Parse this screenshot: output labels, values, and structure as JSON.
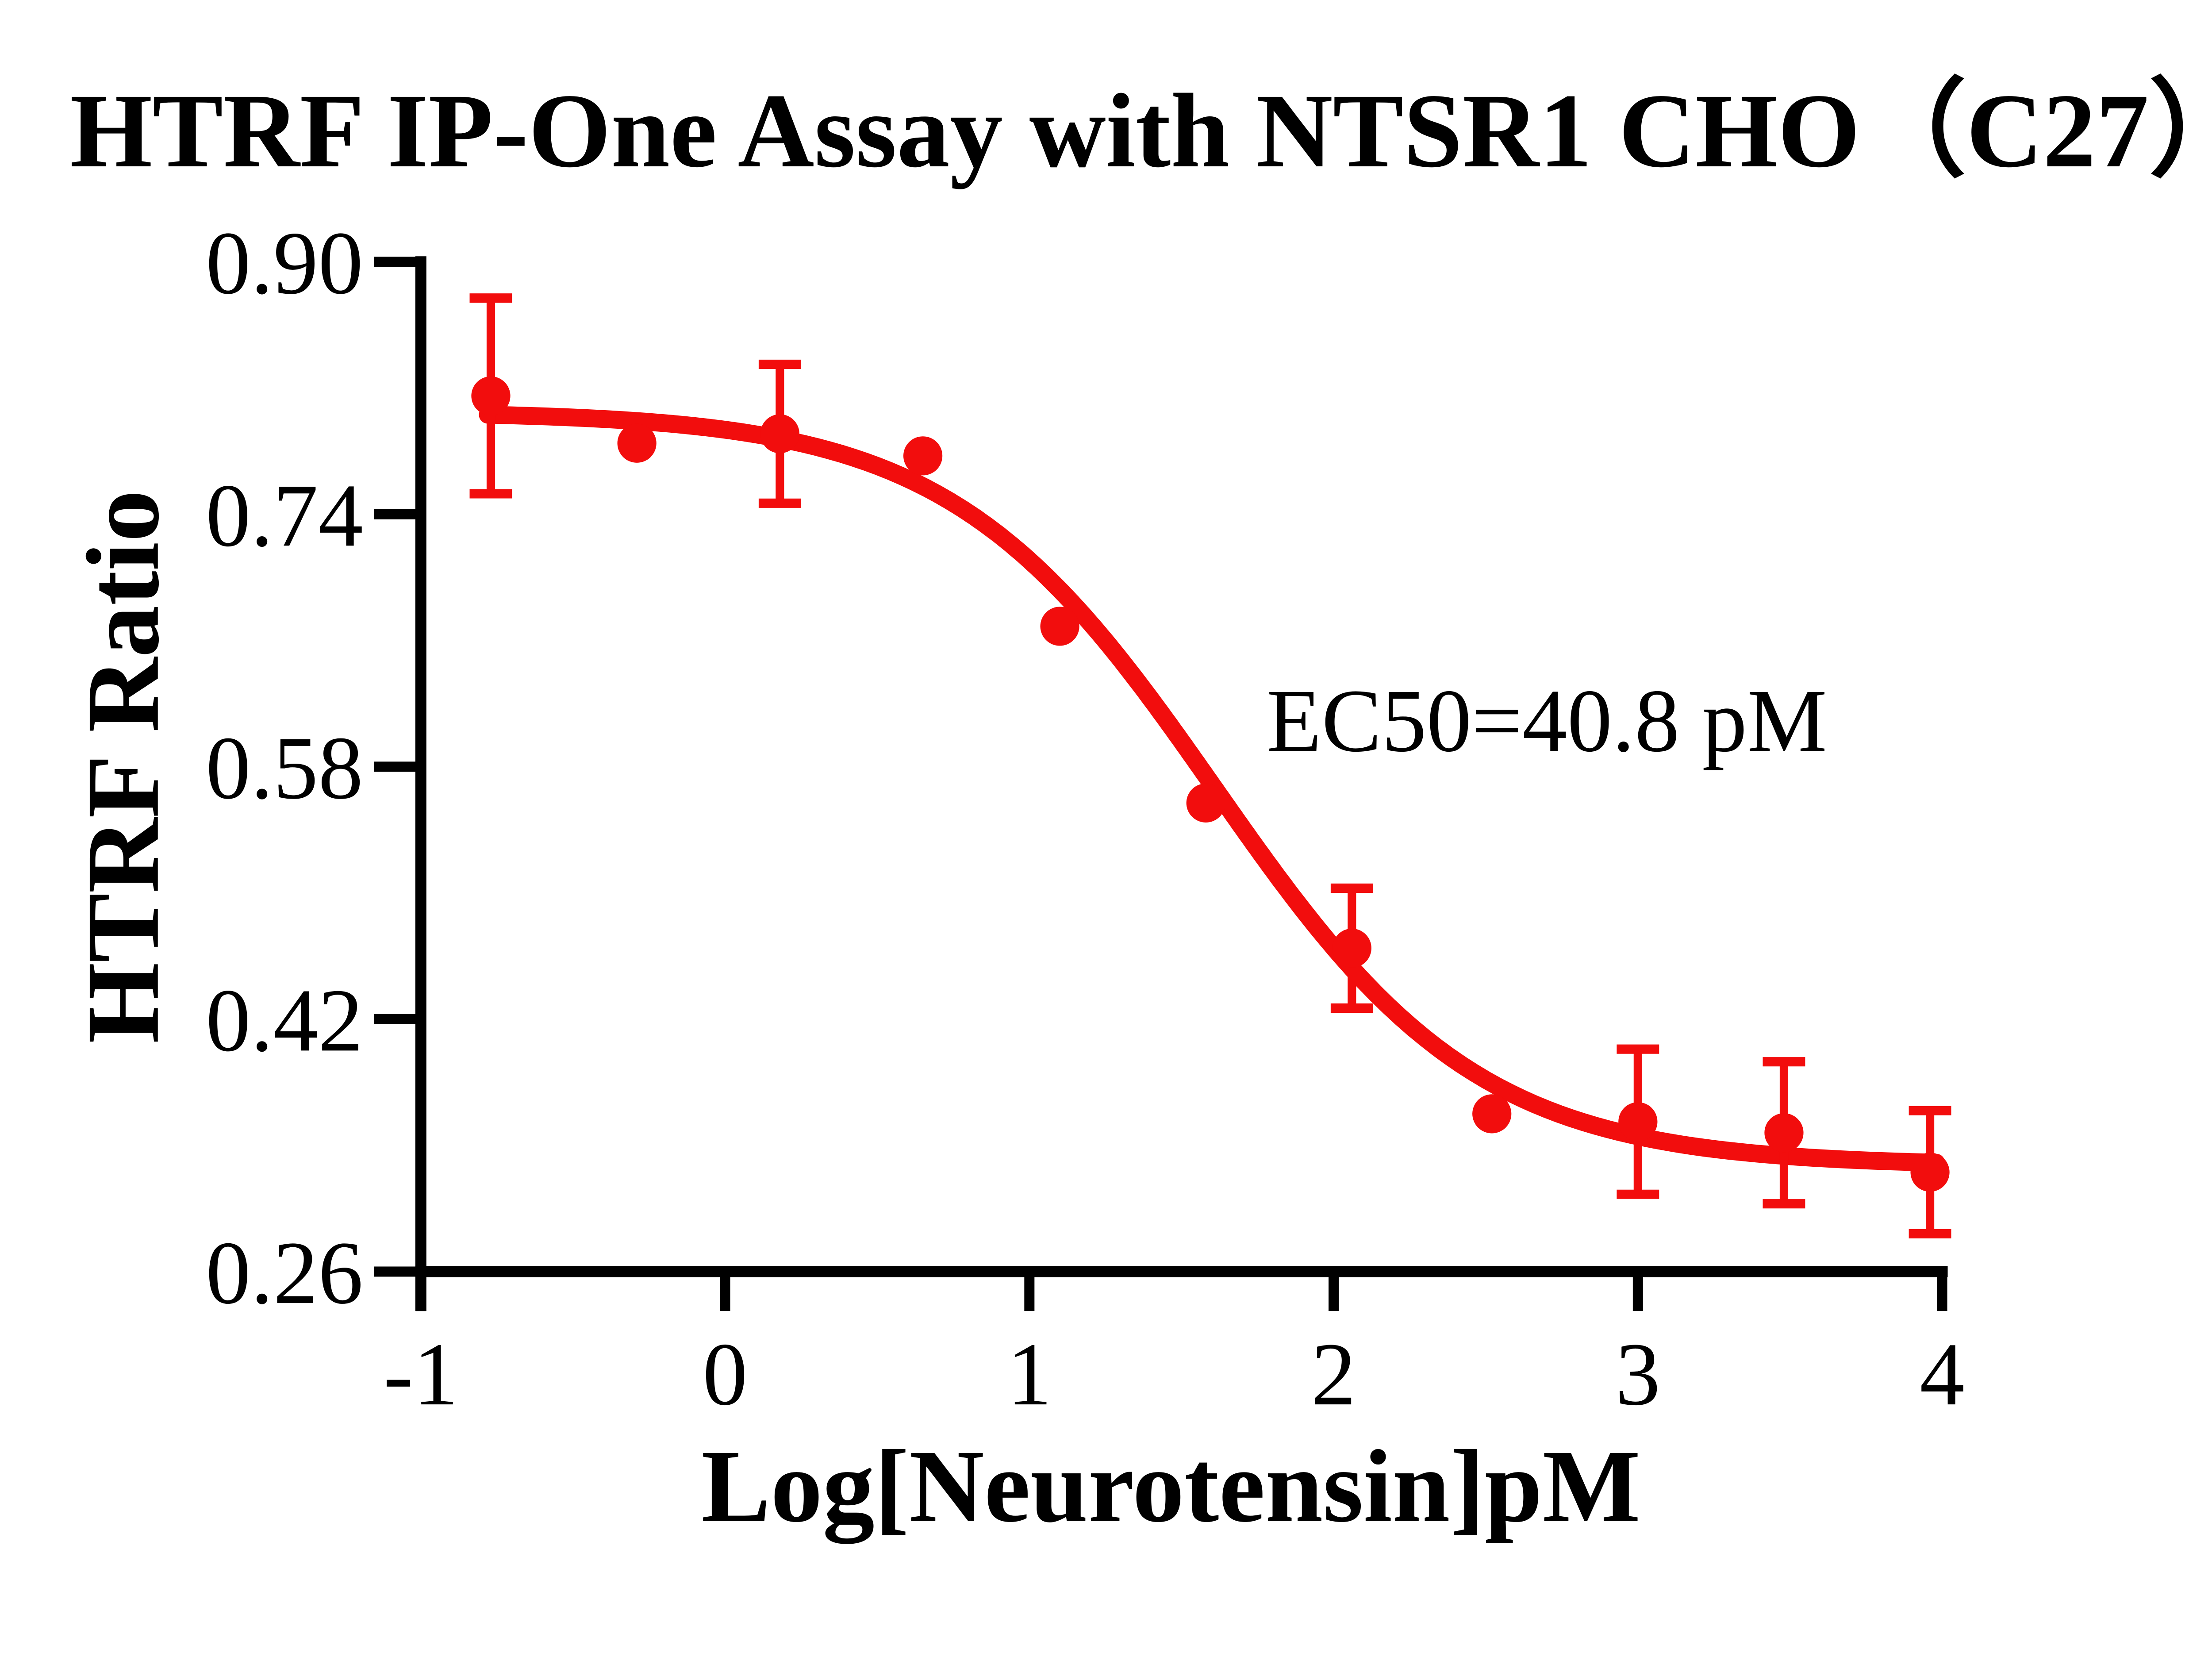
{
  "figure": {
    "background_color": "#ffffff",
    "axis_color": "#000000",
    "accent_color": "#f20d0d"
  },
  "chart_data": {
    "type": "scatter",
    "title": "HTRF IP-One Assay with NTSR1 CHO（C27）",
    "xlabel": "Log[Neurotensin]pM",
    "ylabel": "HTRF Ratio",
    "xlim": [
      -1,
      4
    ],
    "ylim": [
      0.26,
      0.9
    ],
    "x_ticks": [
      -1,
      0,
      1,
      2,
      3,
      4
    ],
    "y_ticks": [
      0.9,
      0.74,
      0.58,
      0.42,
      0.26
    ],
    "grid": false,
    "legend_position": "none",
    "annotation": {
      "text": "EC50=40.8 pM",
      "x": 1.78,
      "y": 0.59
    },
    "ec50": {
      "value": 40.8,
      "unit": "pM"
    },
    "series": [
      {
        "name": "NTSR1 CHO (C27)",
        "color": "#f20d0d",
        "marker": "circle",
        "points": [
          {
            "x": -0.77,
            "y": 0.815,
            "err": 0.062
          },
          {
            "x": -0.29,
            "y": 0.785,
            "err": 0
          },
          {
            "x": 0.18,
            "y": 0.791,
            "err": 0.044
          },
          {
            "x": 0.65,
            "y": 0.777,
            "err": 0
          },
          {
            "x": 1.1,
            "y": 0.669,
            "err": 0
          },
          {
            "x": 1.58,
            "y": 0.557,
            "err": 0
          },
          {
            "x": 2.06,
            "y": 0.465,
            "err": 0.038
          },
          {
            "x": 2.52,
            "y": 0.36,
            "err": 0
          },
          {
            "x": 3.0,
            "y": 0.355,
            "err": 0.046
          },
          {
            "x": 3.48,
            "y": 0.348,
            "err": 0.045
          },
          {
            "x": 3.96,
            "y": 0.323,
            "err": 0.039
          }
        ]
      }
    ],
    "fit_curve": {
      "model": "4PL-sigmoid-descending",
      "top": 0.805,
      "bottom": 0.327,
      "log_ec50": 1.61,
      "hill": 1,
      "x_start": -0.78,
      "x_end": 4.0
    }
  }
}
